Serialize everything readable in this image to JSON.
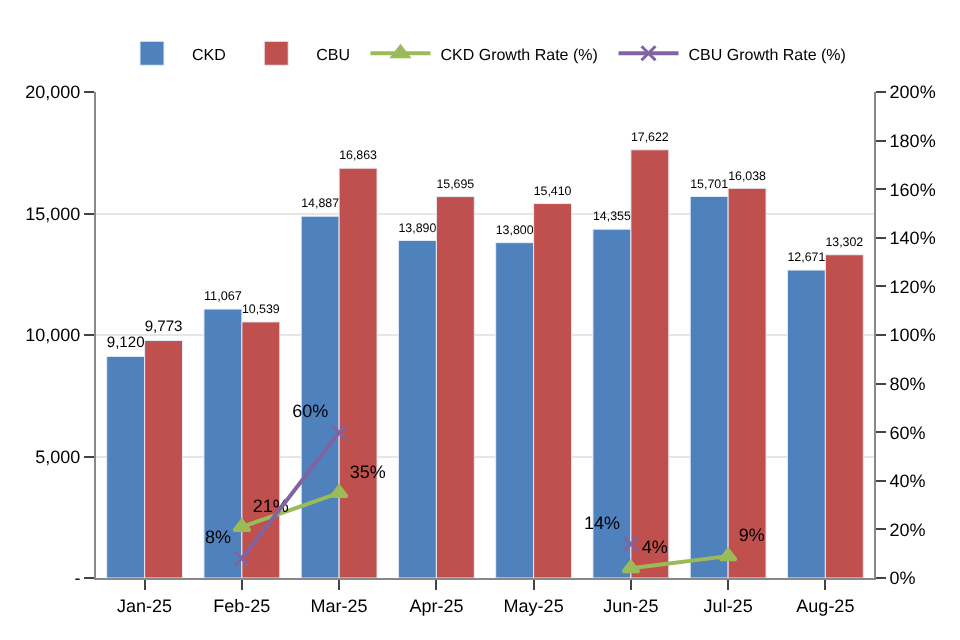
{
  "chart_data": {
    "type": "bar",
    "categories": [
      "Jan-25",
      "Feb-25",
      "Mar-25",
      "Apr-25",
      "May-25",
      "Jun-25",
      "Jul-25",
      "Aug-25"
    ],
    "series": [
      {
        "name": "CKD",
        "color": "#4f81bd",
        "values": [
          9120,
          11067,
          14887,
          13890,
          13800,
          14355,
          15701,
          12671
        ],
        "value_labels": [
          "9,120",
          "11,067",
          "14,887",
          "13,890",
          "13,800",
          "14,355",
          "15,701",
          "12,671"
        ]
      },
      {
        "name": "CBU",
        "color": "#c0504d",
        "values": [
          9773,
          10539,
          16863,
          15695,
          15410,
          17622,
          16038,
          13302
        ],
        "value_labels": [
          "9,773",
          "10,539",
          "16,863",
          "15,695",
          "15,410",
          "17,622",
          "16,038",
          "13,302"
        ]
      },
      {
        "name": "CKD Growth Rate (%)",
        "type": "line",
        "axis": "y2",
        "marker": "triangle",
        "color": "#9bbb59",
        "values": [
          null,
          21,
          35,
          null,
          null,
          4,
          9,
          null
        ],
        "value_labels": [
          null,
          "21%",
          "35%",
          null,
          null,
          "4%",
          "9%",
          null
        ]
      },
      {
        "name": "CBU Growth Rate (%)",
        "type": "line",
        "axis": "y2",
        "marker": "cross",
        "color": "#8064a2",
        "values": [
          null,
          8,
          60,
          null,
          null,
          14,
          null,
          null
        ],
        "value_labels": [
          null,
          "8%",
          "60%",
          null,
          null,
          "14%",
          null,
          null
        ]
      }
    ],
    "ylim": [
      0,
      20000
    ],
    "yticks": [
      {
        "value": 0,
        "label": "-"
      },
      {
        "value": 5000,
        "label": "5,000"
      },
      {
        "value": 10000,
        "label": "10,000"
      },
      {
        "value": 15000,
        "label": "15,000"
      },
      {
        "value": 20000,
        "label": "20,000"
      }
    ],
    "y2lim": [
      0,
      200
    ],
    "y2ticks": [
      {
        "value": 0,
        "label": "0%"
      },
      {
        "value": 20,
        "label": "20%"
      },
      {
        "value": 40,
        "label": "40%"
      },
      {
        "value": 60,
        "label": "60%"
      },
      {
        "value": 80,
        "label": "80%"
      },
      {
        "value": 100,
        "label": "100%"
      },
      {
        "value": 120,
        "label": "120%"
      },
      {
        "value": 140,
        "label": "140%"
      },
      {
        "value": 160,
        "label": "160%"
      },
      {
        "value": 180,
        "label": "180%"
      },
      {
        "value": 200,
        "label": "200%"
      }
    ],
    "grid": "y",
    "legend": "top"
  }
}
